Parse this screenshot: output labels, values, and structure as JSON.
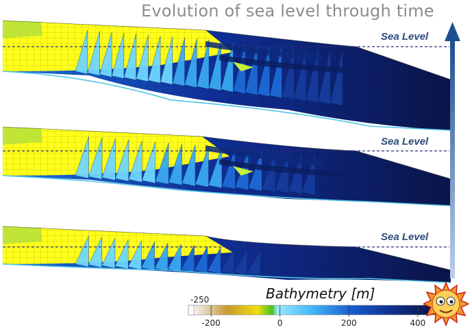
{
  "title": "Evolution of sea level through time",
  "sea_level_label": "Sea Level",
  "colorbar": {
    "title": "Bathymetry [m]",
    "min_label": "-250",
    "ticks": [
      "-200",
      "0",
      "200",
      "400"
    ],
    "tick_values": [
      -200,
      0,
      200,
      400
    ],
    "range": [
      -250,
      450
    ],
    "colors": [
      "#ffffff",
      "#c8a030",
      "#f0e000",
      "#58d020",
      "#66d8ff",
      "#2080e0",
      "#10308a",
      "#0a1550"
    ]
  },
  "colors": {
    "shelf_yellow": "#ffff19",
    "deep_blue": "#0b1a5a",
    "mid_blue": "#1a74e0",
    "light_blue": "#58cfff",
    "arrow": "#2f5f9e",
    "sea_level_line": "#2b2b7a"
  },
  "logo": "sun-mascot-icon"
}
